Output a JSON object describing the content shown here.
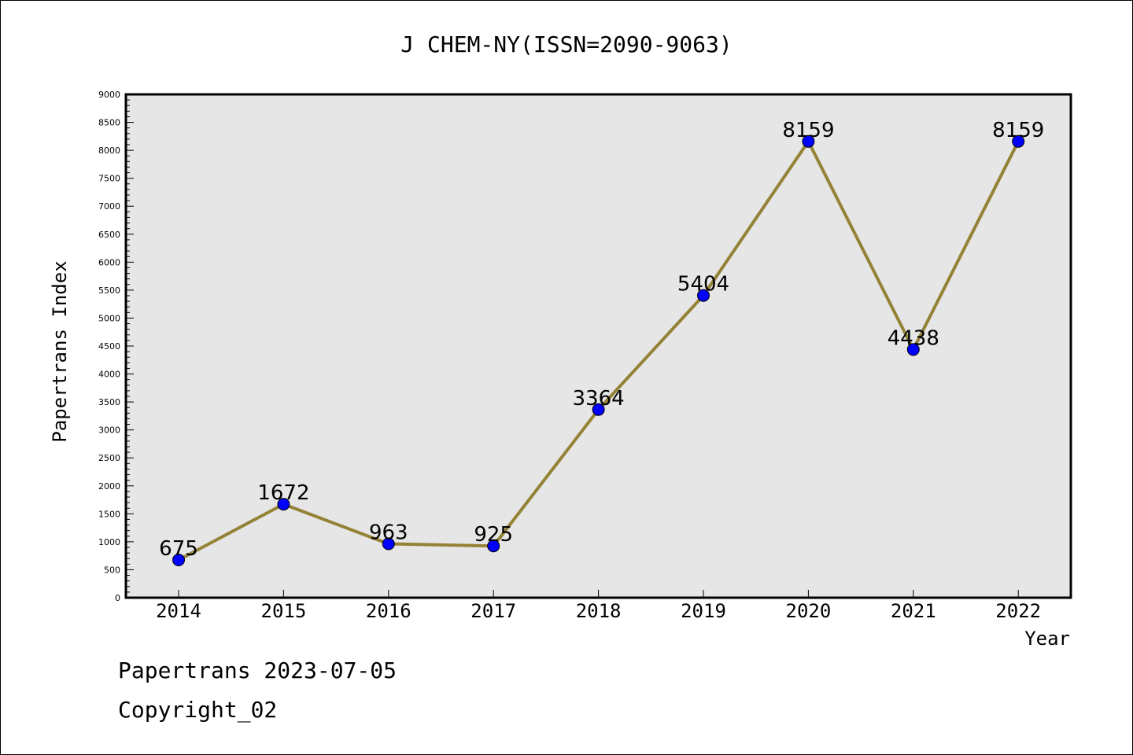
{
  "chart_data": {
    "type": "line",
    "title": "J CHEM-NY(ISSN=2090-9063)",
    "xlabel": "Year",
    "ylabel": "Papertrans Index",
    "categories": [
      "2014",
      "2015",
      "2016",
      "2017",
      "2018",
      "2019",
      "2020",
      "2021",
      "2022"
    ],
    "series": [
      {
        "values": [
          675,
          1672,
          963,
          925,
          3364,
          5404,
          8159,
          4438,
          8159
        ]
      }
    ],
    "ylim": [
      0,
      9000
    ],
    "ytick_step": 500,
    "grid": false,
    "data_labels": true,
    "colors": {
      "plot_background": "#e6e6e6",
      "line": "#948236",
      "marker": "#0000ff"
    }
  },
  "footer": {
    "date_text": "Papertrans 2023-07-05",
    "copyright_text": "Copyright_02"
  }
}
